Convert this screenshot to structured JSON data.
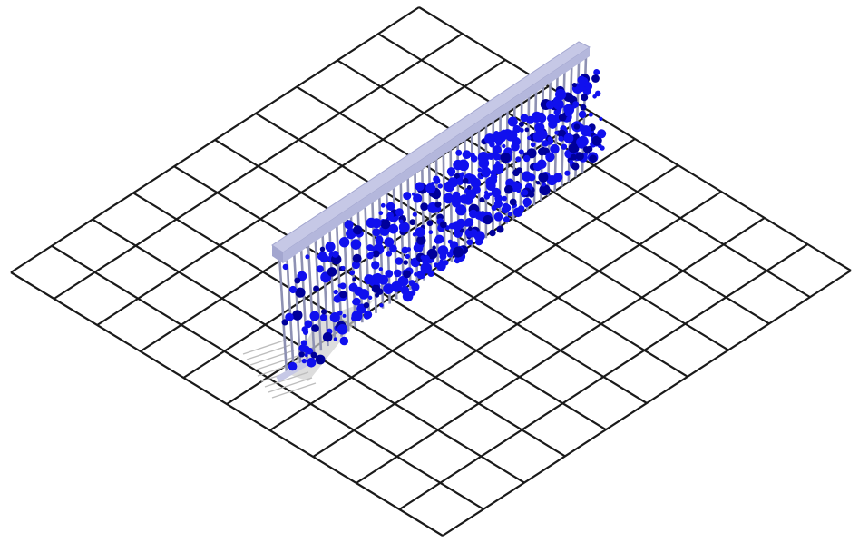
{
  "scene": {
    "grid": {
      "cells": 10,
      "line_color": "#1a1a1a",
      "cell_color": "#ffffff"
    },
    "rake": {
      "rail_color": "#c6c8e6",
      "rail_edge_color": "#a3a6cf",
      "tine_color": "#8e91b3",
      "tine_count": 44
    },
    "particles": {
      "color": "#1010ee",
      "dark_color": "#00009a",
      "count": 520
    },
    "shadow_color": "#cfcfcf"
  }
}
